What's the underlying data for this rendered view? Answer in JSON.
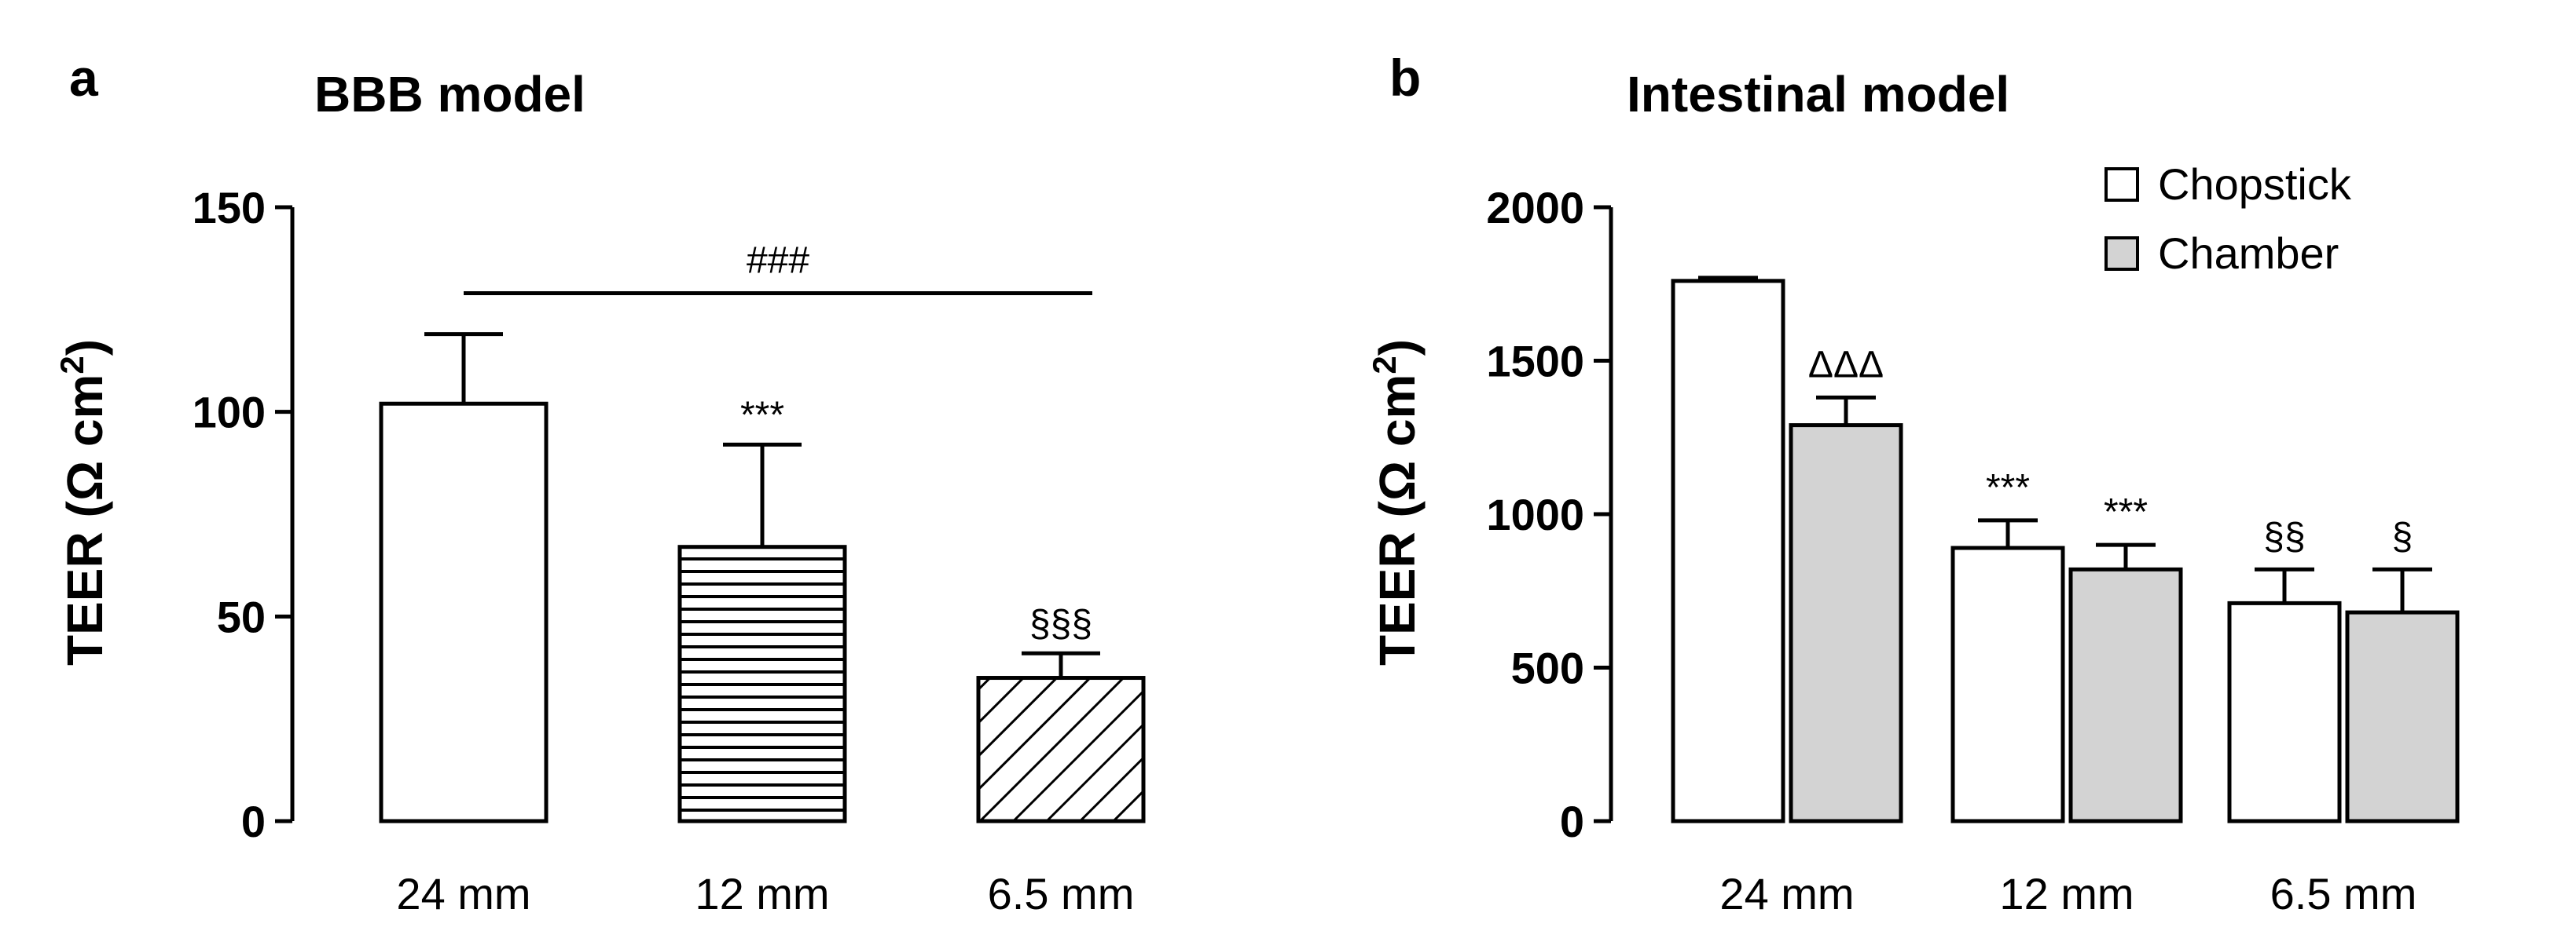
{
  "chart_data": [
    {
      "type": "bar",
      "panel": "a",
      "title": "BBB model",
      "ylabel": "TEER (Ω cm",
      "ylabel_sup": "2",
      "ylabel_close": ")",
      "ylim": [
        0,
        150
      ],
      "yticks": [
        0,
        50,
        100,
        150
      ],
      "categories": [
        "24 mm",
        "12 mm",
        "6.5 mm"
      ],
      "bars": [
        {
          "category": "24 mm",
          "value": 102,
          "error": 17,
          "pattern": "none",
          "annotation": ""
        },
        {
          "category": "12 mm",
          "value": 67,
          "error": 25,
          "pattern": "horizontal",
          "annotation": "***"
        },
        {
          "category": "6.5 mm",
          "value": 35,
          "error": 6,
          "pattern": "diagonal",
          "annotation": "§§§"
        }
      ],
      "bracket": {
        "from": "24 mm",
        "to": "6.5 mm",
        "y": 129,
        "label": "###"
      }
    },
    {
      "type": "bar",
      "panel": "b",
      "title": "Intestinal model",
      "ylabel": "TEER (Ω cm",
      "ylabel_sup": "2",
      "ylabel_close": ")",
      "ylim": [
        0,
        2000
      ],
      "yticks": [
        0,
        500,
        1000,
        1500,
        2000
      ],
      "categories": [
        "24 mm",
        "12 mm",
        "6.5 mm"
      ],
      "legend": [
        {
          "name": "Chopstick",
          "color": "#ffffff"
        },
        {
          "name": "Chamber",
          "color": "#d3d3d3"
        }
      ],
      "series": [
        {
          "name": "Chopstick",
          "color": "#ffffff",
          "values": [
            1760,
            890,
            710
          ],
          "errors": [
            10,
            90,
            110
          ],
          "annotations": [
            "",
            "***",
            "§§"
          ]
        },
        {
          "name": "Chamber",
          "color": "#d3d3d3",
          "values": [
            1290,
            820,
            680
          ],
          "errors": [
            90,
            80,
            140
          ],
          "annotations": [
            "ΔΔΔ",
            "***",
            "§"
          ]
        }
      ]
    }
  ]
}
